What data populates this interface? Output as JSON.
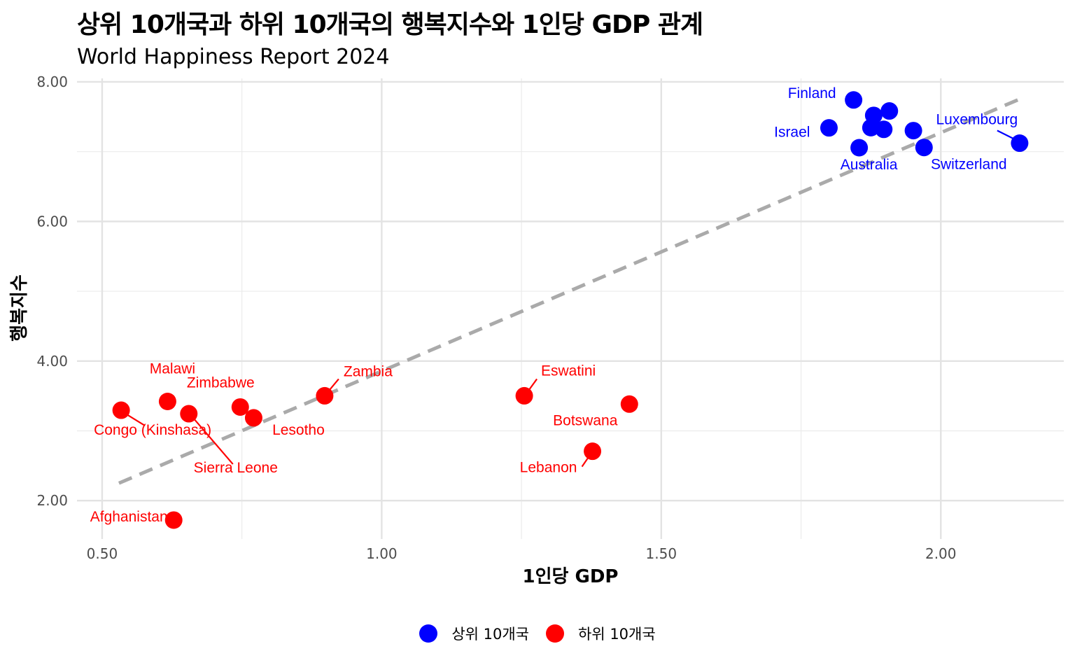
{
  "chart_data": {
    "type": "scatter",
    "title": "상위 10개국과 하위 10개국의 행복지수와 1인당 GDP 관계",
    "subtitle": "World Happiness Report 2024",
    "xlabel": "1인당 GDP",
    "ylabel": "행복지수",
    "xlim": [
      0.455,
      2.22
    ],
    "ylim": [
      1.45,
      8.05
    ],
    "x_ticks": [
      "0.50",
      "1.00",
      "1.50",
      "2.00"
    ],
    "y_ticks": [
      "2.00",
      "4.00",
      "6.00",
      "8.00"
    ],
    "grid": true,
    "legend_position": "bottom",
    "trend_line": {
      "style": "dashed",
      "color": "#aaaaaa",
      "x": [
        0.53,
        2.14
      ],
      "y": [
        2.25,
        7.75
      ]
    },
    "series": [
      {
        "name": "상위 10개국",
        "color": "#0000ff",
        "points": [
          {
            "x": 1.844,
            "y": 7.741,
            "label": "Finland"
          },
          {
            "x": 1.88,
            "y": 7.52,
            "label": ""
          },
          {
            "x": 1.908,
            "y": 7.583,
            "label": ""
          },
          {
            "x": 1.8,
            "y": 7.341,
            "label": "Israel"
          },
          {
            "x": 1.875,
            "y": 7.344,
            "label": ""
          },
          {
            "x": 1.898,
            "y": 7.32,
            "label": ""
          },
          {
            "x": 1.951,
            "y": 7.302,
            "label": ""
          },
          {
            "x": 1.854,
            "y": 7.057,
            "label": "Australia"
          },
          {
            "x": 1.97,
            "y": 7.06,
            "label": "Switzerland"
          },
          {
            "x": 2.141,
            "y": 7.122,
            "label": "Luxembourg"
          }
        ]
      },
      {
        "name": "하위 10개국",
        "color": "#ff0000",
        "points": [
          {
            "x": 0.534,
            "y": 3.295,
            "label": "Congo (Kinshasa)"
          },
          {
            "x": 0.617,
            "y": 3.421,
            "label": "Malawi"
          },
          {
            "x": 0.655,
            "y": 3.245,
            "label": "Sierra Leone"
          },
          {
            "x": 0.747,
            "y": 3.341,
            "label": "Zimbabwe"
          },
          {
            "x": 0.771,
            "y": 3.186,
            "label": "Lesotho"
          },
          {
            "x": 0.898,
            "y": 3.502,
            "label": "Zambia"
          },
          {
            "x": 1.255,
            "y": 3.502,
            "label": "Eswatini"
          },
          {
            "x": 1.443,
            "y": 3.383,
            "label": "Botswana"
          },
          {
            "x": 1.377,
            "y": 2.707,
            "label": "Lebanon"
          },
          {
            "x": 0.628,
            "y": 1.721,
            "label": "Afghanistan"
          }
        ]
      }
    ]
  }
}
